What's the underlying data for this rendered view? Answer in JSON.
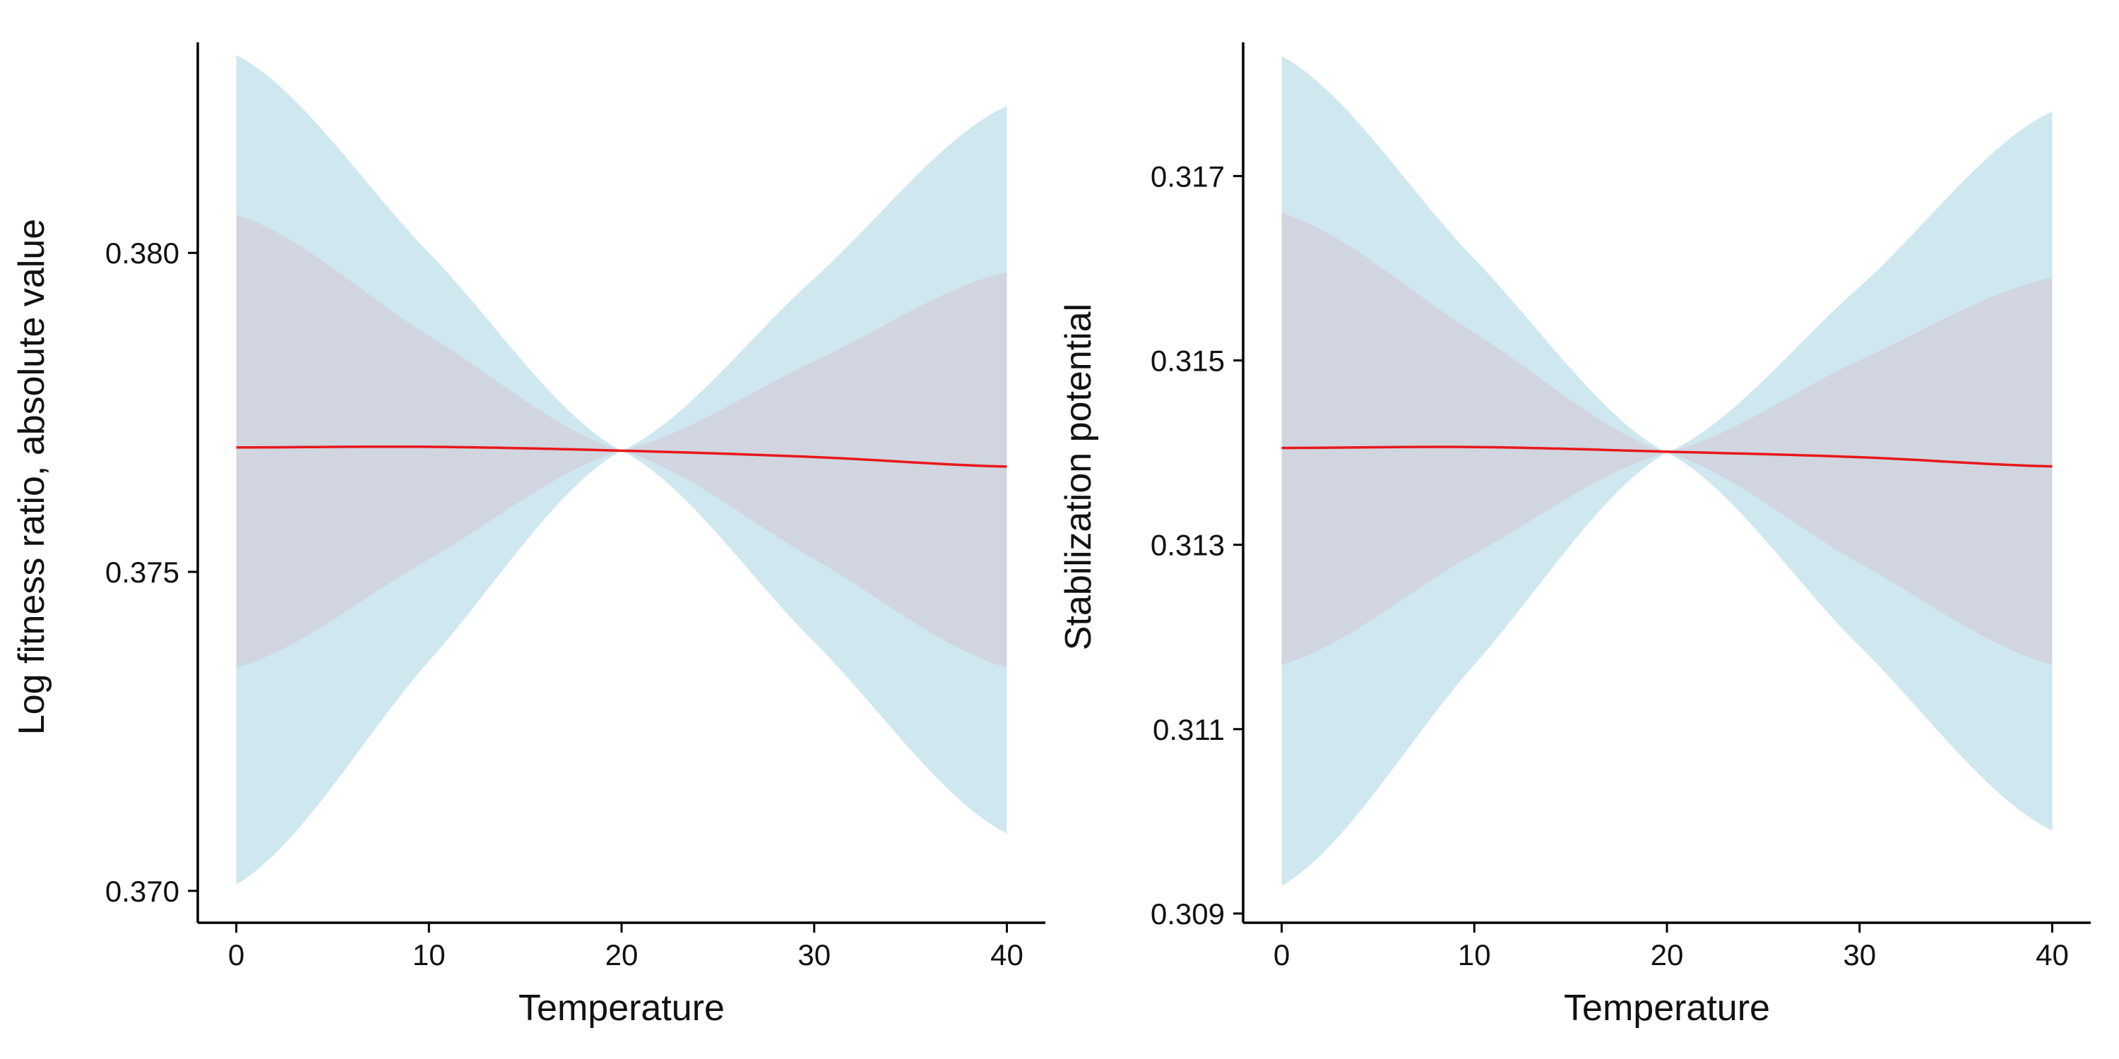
{
  "chart_data": [
    {
      "type": "area",
      "xlabel": "Temperature",
      "ylabel": "Log fitness ratio, absolute value",
      "xlim": [
        -2,
        42
      ],
      "ylim": [
        0.3695,
        0.3833
      ],
      "x_ticks": [
        0,
        10,
        20,
        30,
        40
      ],
      "y_ticks": [
        0.37,
        0.375,
        0.38
      ],
      "y_tick_labels": [
        "0.370",
        "0.375",
        "0.380"
      ],
      "grid": false,
      "legend": "none",
      "series": [
        {
          "x": [
            0,
            10,
            20,
            30,
            40
          ],
          "y": [
            0.37695,
            0.37696,
            0.3769,
            0.3768,
            0.37665
          ],
          "color": "#e8171b",
          "role": "line"
        },
        {
          "x": [
            0,
            10,
            20,
            30,
            40
          ],
          "lower": [
            0.3701,
            0.3736,
            0.3769,
            0.3739,
            0.3709
          ],
          "upper": [
            0.3831,
            0.38,
            0.3769,
            0.3796,
            0.3823
          ],
          "color": "#cfe7ef",
          "role": "outer-band"
        },
        {
          "x": [
            0,
            10,
            20,
            30,
            40
          ],
          "lower": [
            0.3735,
            0.3752,
            0.3769,
            0.3752,
            0.3735
          ],
          "upper": [
            0.3806,
            0.3787,
            0.3769,
            0.3783,
            0.3797
          ],
          "color": "#d0d5df",
          "role": "inner-band"
        }
      ]
    },
    {
      "type": "area",
      "xlabel": "Temperature",
      "ylabel": "Stabilization potential",
      "xlim": [
        -2,
        42
      ],
      "ylim": [
        0.3089,
        0.31845
      ],
      "x_ticks": [
        0,
        10,
        20,
        30,
        40
      ],
      "y_ticks": [
        0.309,
        0.311,
        0.313,
        0.315,
        0.317
      ],
      "y_tick_labels": [
        "0.309",
        "0.311",
        "0.313",
        "0.315",
        "0.317"
      ],
      "grid": false,
      "legend": "none",
      "series": [
        {
          "x": [
            0,
            10,
            20,
            30,
            40
          ],
          "y": [
            0.31405,
            0.31406,
            0.31401,
            0.31395,
            0.31385
          ],
          "color": "#e8171b",
          "role": "line"
        },
        {
          "x": [
            0,
            10,
            20,
            30,
            40
          ],
          "lower": [
            0.3093,
            0.3117,
            0.314,
            0.3119,
            0.3099
          ],
          "upper": [
            0.3183,
            0.3161,
            0.314,
            0.3158,
            0.3177
          ],
          "color": "#cfe7ef",
          "role": "outer-band"
        },
        {
          "x": [
            0,
            10,
            20,
            30,
            40
          ],
          "lower": [
            0.3117,
            0.3129,
            0.314,
            0.3128,
            0.3117
          ],
          "upper": [
            0.3166,
            0.3153,
            0.314,
            0.315,
            0.3159
          ],
          "color": "#d0d5df",
          "role": "inner-band"
        }
      ]
    }
  ],
  "colors": {
    "line": "#e8171b",
    "outer_band": "#cfe7ef",
    "inner_band": "#d0d5df",
    "axis": "#000000"
  }
}
